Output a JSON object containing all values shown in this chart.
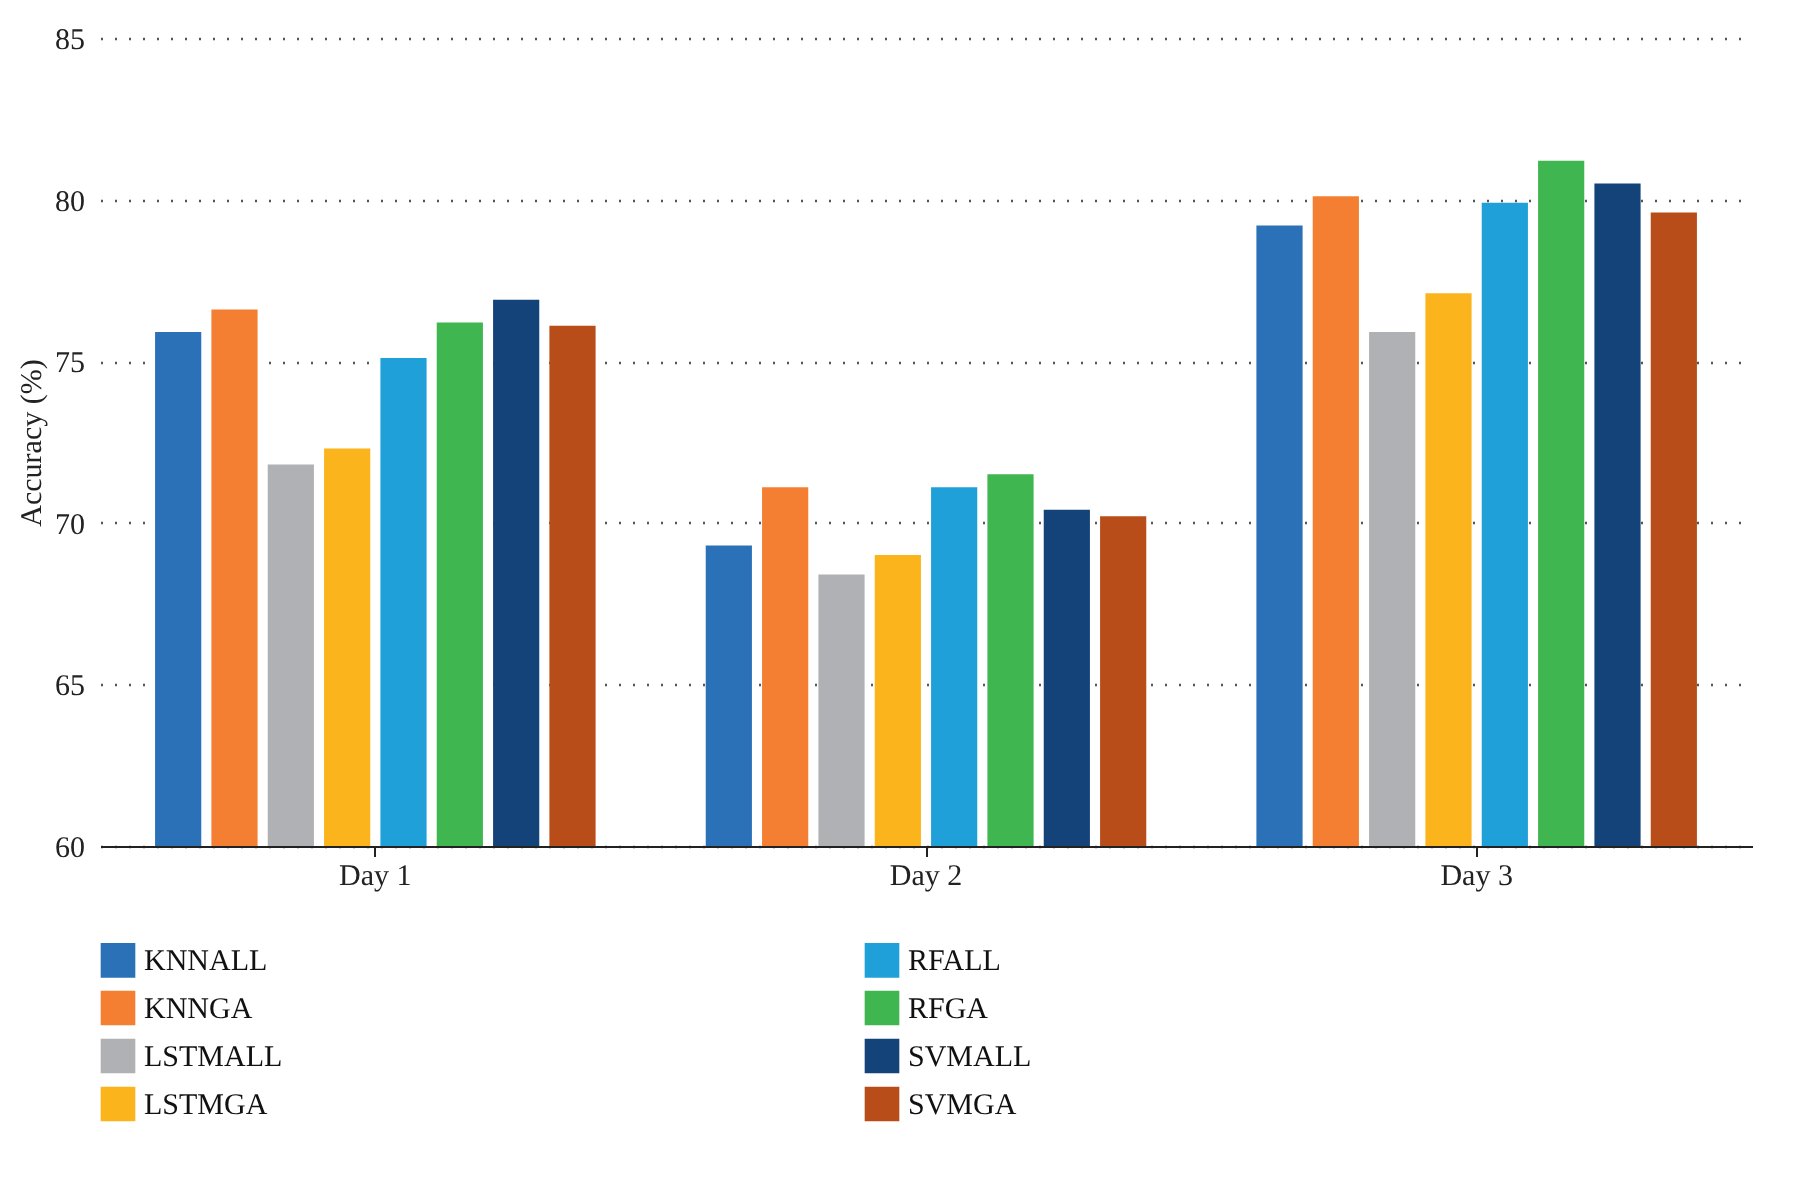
{
  "chart_data": {
    "type": "bar",
    "ylabel": "Accuracy (%)",
    "categories": [
      "Day 1",
      "Day 2",
      "Day 3"
    ],
    "series": [
      {
        "name": "KNNALL",
        "color": "#2a71b8",
        "values": [
          75.9,
          69.3,
          79.2
        ]
      },
      {
        "name": "KNNGA",
        "color": "#f47f32",
        "values": [
          76.6,
          71.1,
          80.1
        ]
      },
      {
        "name": "LSTMALL",
        "color": "#b0b1b4",
        "values": [
          71.8,
          68.4,
          75.9
        ]
      },
      {
        "name": "LSTMGA",
        "color": "#fbb41b",
        "values": [
          72.3,
          69.0,
          77.1
        ]
      },
      {
        "name": "RFALL",
        "color": "#1fa0d9",
        "values": [
          75.1,
          71.1,
          79.9
        ]
      },
      {
        "name": "RFGA",
        "color": "#3fb650",
        "values": [
          76.2,
          71.5,
          81.2
        ]
      },
      {
        "name": "SVMALL",
        "color": "#14437a",
        "values": [
          76.9,
          70.4,
          80.5
        ]
      },
      {
        "name": "SVMGA",
        "color": "#b84d1a",
        "values": [
          76.1,
          70.2,
          79.6
        ]
      }
    ],
    "ylim": [
      60,
      85
    ],
    "yticks": [
      60,
      65,
      70,
      75,
      80,
      85
    ],
    "grid": "y",
    "legend": "bottom"
  }
}
